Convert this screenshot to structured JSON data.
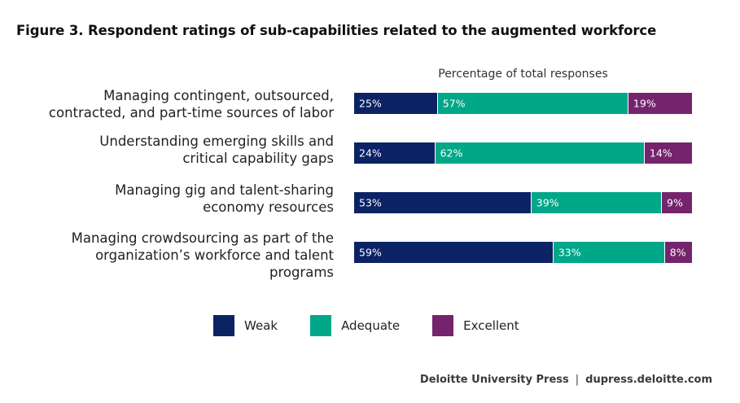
{
  "chart_data": {
    "type": "bar",
    "orientation": "horizontal",
    "stacked": true,
    "title": "Figure 3. Respondent ratings of sub-capabilities related to the augmented workforce",
    "xlabel": "Percentage of total responses",
    "ylabel": "",
    "categories": [
      "Managing contingent, outsourced,\ncontracted, and part-time sources of labor",
      "Understanding emerging skills and\ncritical capability gaps",
      "Managing gig and talent-sharing\neconomy resources",
      "Managing crowdsourcing as part of the\norganization’s workforce and talent\nprograms"
    ],
    "series": [
      {
        "name": "Weak",
        "color": "#0b2265",
        "values": [
          25,
          24,
          53,
          59
        ],
        "labels": [
          "25%",
          "24%",
          "53%",
          "59%"
        ]
      },
      {
        "name": "Adequate",
        "color": "#00a788",
        "values": [
          57,
          62,
          39,
          33
        ],
        "labels": [
          "57%",
          "62%",
          "39%",
          "33%"
        ]
      },
      {
        "name": "Excellent",
        "color": "#75236d",
        "values": [
          19,
          14,
          9,
          8
        ],
        "labels": [
          "19%",
          "14%",
          "9%",
          "8%"
        ]
      }
    ],
    "legend_position": "bottom"
  },
  "footer": {
    "publisher": "Deloitte University Press",
    "separator": "|",
    "url": "dupress.deloitte.com"
  }
}
